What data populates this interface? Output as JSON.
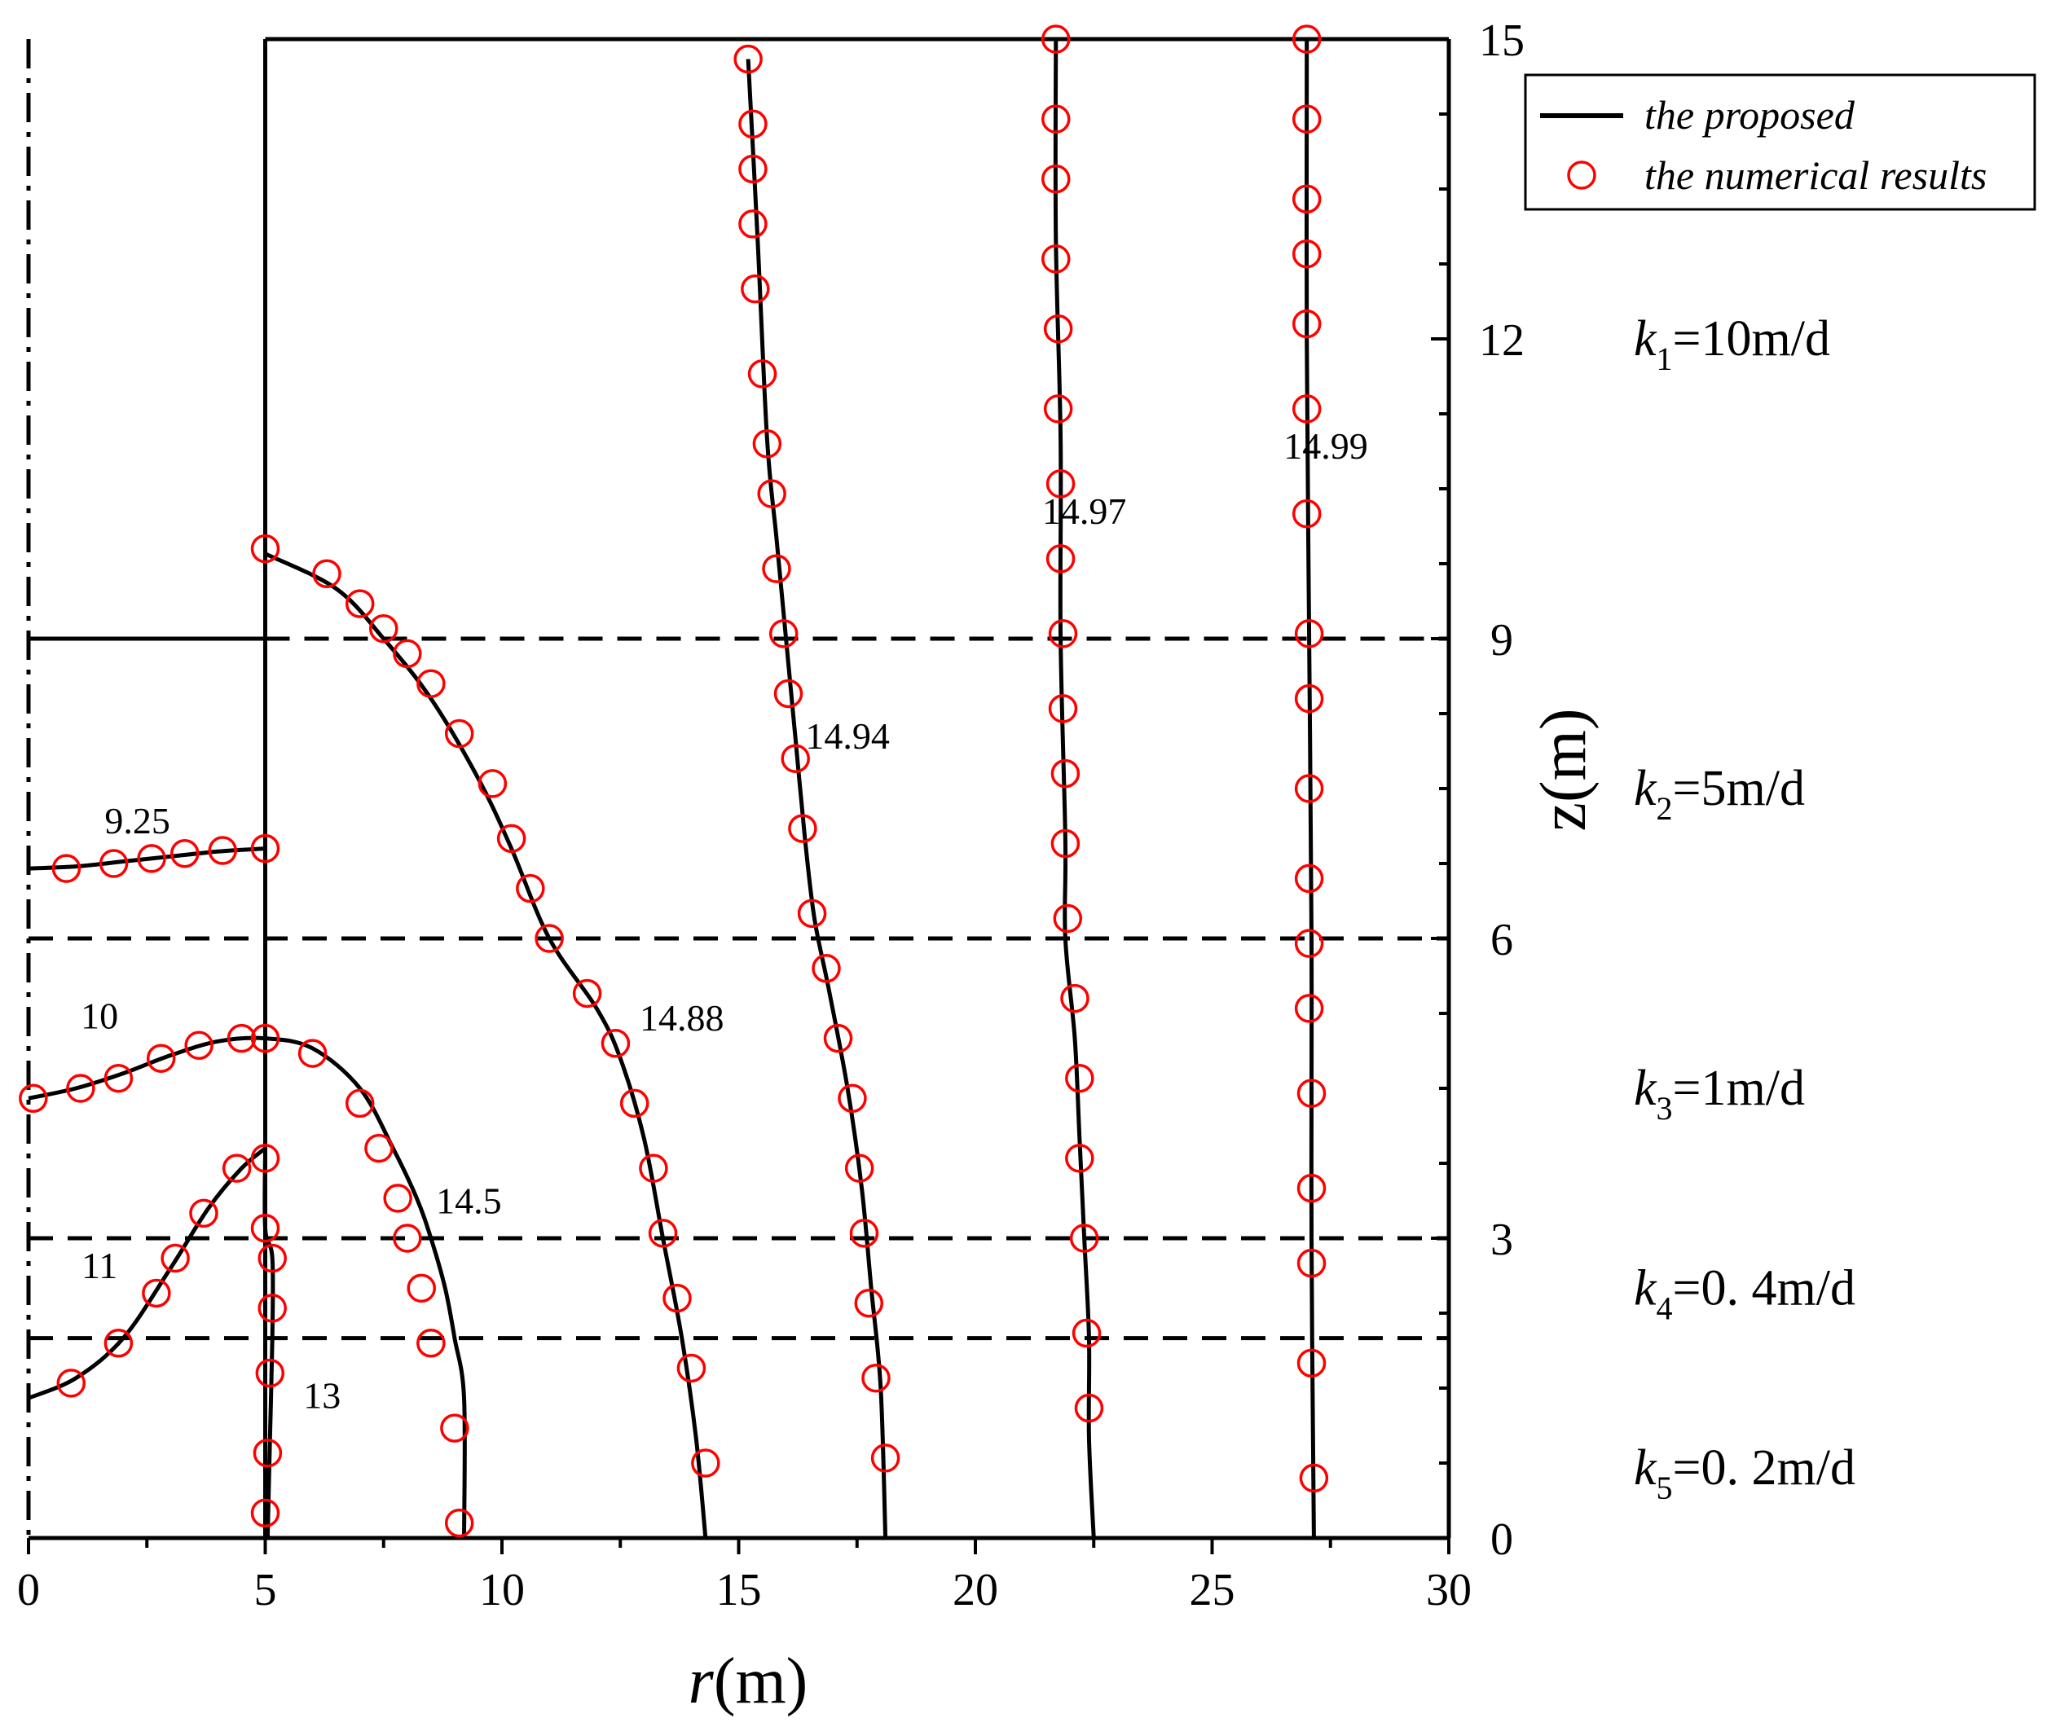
{
  "chart_data": {
    "type": "line",
    "title": "",
    "xlabel": {
      "italic": "r",
      "rest": "(m)"
    },
    "ylabel": "z(m)",
    "xlim": [
      0,
      30
    ],
    "ylim": [
      0,
      15
    ],
    "x_ticks": [
      "0",
      "5",
      "10",
      "15",
      "20",
      "25",
      "30"
    ],
    "y_ticks": [
      "0",
      "3",
      "6",
      "9",
      "12",
      "15"
    ],
    "y_tick_values": [
      0,
      3,
      6,
      9,
      12,
      15
    ],
    "layer_boundaries_z": [
      2,
      3,
      6,
      9
    ],
    "well_radius": 5,
    "legend": {
      "position": "top-right",
      "line_label": "the proposed",
      "marker_label": "the numerical results"
    },
    "layers": [
      {
        "k": "k",
        "sub": "1",
        "value": "=10m/d",
        "z": 12
      },
      {
        "k": "k",
        "sub": "2",
        "value": "=5m/d",
        "z": 7.5
      },
      {
        "k": "k",
        "sub": "3",
        "value": "=1m/d",
        "z": 4.5
      },
      {
        "k": "k",
        "sub": "4",
        "value": "=0. 4m/d",
        "z": 2.5
      },
      {
        "k": "k",
        "sub": "5",
        "value": "=0. 2m/d",
        "z": 0.7
      }
    ],
    "colors": {
      "line": "#000000",
      "marker": "#ff0000"
    },
    "series": [
      {
        "label": "9.25",
        "label_pos": [
          2.3,
          7.05
        ],
        "curve": [
          [
            0,
            6.7
          ],
          [
            1,
            6.72
          ],
          [
            2,
            6.77
          ],
          [
            3,
            6.82
          ],
          [
            4,
            6.87
          ],
          [
            5,
            6.9
          ]
        ],
        "points": [
          [
            0.8,
            6.7
          ],
          [
            1.8,
            6.75
          ],
          [
            2.6,
            6.8
          ],
          [
            3.3,
            6.85
          ],
          [
            4.1,
            6.88
          ],
          [
            5,
            6.9
          ]
        ]
      },
      {
        "label": "10",
        "label_pos": [
          1.5,
          5.1
        ],
        "curve": [
          [
            0,
            4.4
          ],
          [
            1,
            4.5
          ],
          [
            2,
            4.65
          ],
          [
            3,
            4.83
          ],
          [
            4,
            4.97
          ],
          [
            5,
            5
          ],
          [
            6,
            4.9
          ],
          [
            7,
            4.5
          ],
          [
            7.7,
            3.9
          ],
          [
            8.2,
            3.4
          ],
          [
            8.5,
            3
          ],
          [
            8.8,
            2.5
          ],
          [
            9,
            2
          ],
          [
            9.2,
            1.4
          ],
          [
            9.2,
            0
          ]
        ],
        "points": [
          [
            0.1,
            4.4
          ],
          [
            1.1,
            4.5
          ],
          [
            1.9,
            4.6
          ],
          [
            2.8,
            4.8
          ],
          [
            3.6,
            4.93
          ],
          [
            4.5,
            5
          ],
          [
            5,
            5
          ],
          [
            6,
            4.85
          ],
          [
            7,
            4.35
          ],
          [
            7.4,
            3.9
          ],
          [
            7.8,
            3.4
          ],
          [
            8,
            3
          ],
          [
            8.3,
            2.5
          ],
          [
            8.5,
            1.95
          ],
          [
            9,
            1.1
          ],
          [
            9.1,
            0.15
          ]
        ]
      },
      {
        "label": "11",
        "label_pos": [
          1.5,
          2.6
        ],
        "curve": [
          [
            0,
            1.4
          ],
          [
            1,
            1.6
          ],
          [
            2,
            2
          ],
          [
            3,
            2.7
          ],
          [
            3.8,
            3.3
          ],
          [
            4.5,
            3.7
          ],
          [
            5,
            3.9
          ]
        ],
        "points": [
          [
            0.9,
            1.55
          ],
          [
            1.9,
            1.95
          ],
          [
            2.7,
            2.45
          ],
          [
            3.1,
            2.8
          ],
          [
            3.7,
            3.25
          ],
          [
            4.4,
            3.7
          ],
          [
            5,
            3.8
          ]
        ]
      },
      {
        "label": "13",
        "label_pos": [
          6.2,
          1.3
        ],
        "curve": [
          [
            5,
            3.9
          ],
          [
            5,
            3.1
          ],
          [
            5.15,
            2.8
          ],
          [
            5.15,
            2
          ],
          [
            5.1,
            1
          ],
          [
            5.05,
            0
          ]
        ],
        "points": [
          [
            5,
            3.1
          ],
          [
            5.15,
            2.8
          ],
          [
            5.15,
            2.3
          ],
          [
            5.1,
            1.65
          ],
          [
            5.05,
            0.85
          ],
          [
            5,
            0.25
          ]
        ]
      },
      {
        "label": "14.5",
        "label_pos": [
          9.3,
          3.25
        ],
        "curve": [
          [
            5,
            9.85
          ],
          [
            6.5,
            9.5
          ],
          [
            7.5,
            9
          ],
          [
            8.5,
            8.4
          ],
          [
            9.5,
            7.6
          ],
          [
            10.2,
            6.9
          ],
          [
            11,
            6
          ],
          [
            12,
            5.3
          ],
          [
            12.5,
            4.8
          ],
          [
            13,
            4
          ],
          [
            13.4,
            3
          ],
          [
            13.8,
            2
          ],
          [
            14.1,
            1
          ],
          [
            14.3,
            0
          ]
        ],
        "points": [
          [
            5,
            9.9
          ],
          [
            6.3,
            9.65
          ],
          [
            7,
            9.35
          ],
          [
            7.5,
            9.1
          ],
          [
            8,
            8.85
          ],
          [
            8.5,
            8.55
          ],
          [
            9.1,
            8.05
          ],
          [
            9.8,
            7.55
          ],
          [
            10.2,
            7
          ],
          [
            10.6,
            6.5
          ],
          [
            11,
            6
          ],
          [
            11.8,
            5.45
          ],
          [
            12.4,
            4.95
          ],
          [
            12.8,
            4.35
          ],
          [
            13.2,
            3.7
          ],
          [
            13.4,
            3.05
          ],
          [
            13.7,
            2.4
          ],
          [
            14,
            1.7
          ],
          [
            14.3,
            0.75
          ]
        ]
      },
      {
        "label": "14.88",
        "label_pos": [
          13.8,
          5.08
        ],
        "curve": [
          [
            15.2,
            14.8
          ],
          [
            15.4,
            13
          ],
          [
            15.6,
            11
          ],
          [
            15.8,
            10
          ],
          [
            16,
            9
          ],
          [
            16.2,
            8
          ],
          [
            16.4,
            7
          ],
          [
            16.6,
            6.2
          ],
          [
            16.9,
            5.5
          ],
          [
            17.3,
            4.5
          ],
          [
            17.6,
            3.5
          ],
          [
            17.8,
            2.5
          ],
          [
            18,
            1.5
          ],
          [
            18.1,
            0
          ]
        ],
        "points": [
          [
            15.2,
            14.8
          ],
          [
            15.3,
            14.15
          ],
          [
            15.3,
            13.7
          ],
          [
            15.3,
            13.15
          ],
          [
            15.35,
            12.5
          ],
          [
            15.5,
            11.65
          ],
          [
            15.6,
            10.95
          ],
          [
            15.7,
            10.45
          ],
          [
            15.8,
            9.7
          ],
          [
            15.95,
            9.05
          ],
          [
            16.05,
            8.45
          ],
          [
            16.2,
            7.8
          ],
          [
            16.35,
            7.1
          ],
          [
            16.55,
            6.25
          ],
          [
            16.85,
            5.7
          ],
          [
            17.1,
            5
          ],
          [
            17.4,
            4.4
          ],
          [
            17.55,
            3.7
          ],
          [
            17.65,
            3.05
          ],
          [
            17.75,
            2.35
          ],
          [
            17.9,
            1.6
          ],
          [
            18.1,
            0.8
          ]
        ]
      },
      {
        "label": "14.94",
        "label_pos": [
          17.3,
          7.9
        ],
        "curve": [
          [
            21.7,
            15
          ],
          [
            21.7,
            13
          ],
          [
            21.8,
            11
          ],
          [
            21.8,
            9
          ],
          [
            21.9,
            7
          ],
          [
            21.9,
            6
          ],
          [
            22.1,
            5
          ],
          [
            22.2,
            4
          ],
          [
            22.3,
            3
          ],
          [
            22.4,
            2
          ],
          [
            22.4,
            1
          ],
          [
            22.5,
            0
          ]
        ],
        "points": [
          [
            21.7,
            15
          ],
          [
            21.7,
            14.2
          ],
          [
            21.7,
            13.6
          ],
          [
            21.7,
            12.8
          ],
          [
            21.75,
            12.1
          ],
          [
            21.75,
            11.3
          ],
          [
            21.8,
            10.55
          ],
          [
            21.8,
            9.8
          ],
          [
            21.85,
            9.05
          ],
          [
            21.85,
            8.3
          ],
          [
            21.9,
            7.65
          ],
          [
            21.9,
            6.95
          ],
          [
            21.95,
            6.2
          ],
          [
            22.1,
            5.4
          ],
          [
            22.2,
            4.6
          ],
          [
            22.2,
            3.8
          ],
          [
            22.3,
            3
          ],
          [
            22.35,
            2.05
          ],
          [
            22.4,
            1.3
          ]
        ]
      },
      {
        "label": "14.97",
        "label_pos": [
          22.3,
          10.15
        ],
        "curve": [
          [
            27,
            15
          ],
          [
            27,
            12
          ],
          [
            27.05,
            9
          ],
          [
            27.1,
            6
          ],
          [
            27.1,
            3
          ],
          [
            27.15,
            0
          ]
        ],
        "points": [
          [
            27,
            15
          ],
          [
            27,
            14.2
          ],
          [
            27,
            13.4
          ],
          [
            27,
            12.85
          ],
          [
            27,
            12.15
          ],
          [
            27,
            11.3
          ],
          [
            27,
            10.25
          ],
          [
            27.05,
            9.05
          ],
          [
            27.05,
            8.4
          ],
          [
            27.05,
            7.5
          ],
          [
            27.05,
            6.6
          ],
          [
            27.05,
            5.95
          ],
          [
            27.05,
            5.3
          ],
          [
            27.1,
            4.45
          ],
          [
            27.1,
            3.5
          ],
          [
            27.1,
            2.75
          ],
          [
            27.1,
            1.75
          ],
          [
            27.15,
            0.6
          ]
        ]
      },
      {
        "label": "14.99",
        "label_pos": [
          27.4,
          10.8
        ],
        "curve": [],
        "points": []
      }
    ]
  }
}
